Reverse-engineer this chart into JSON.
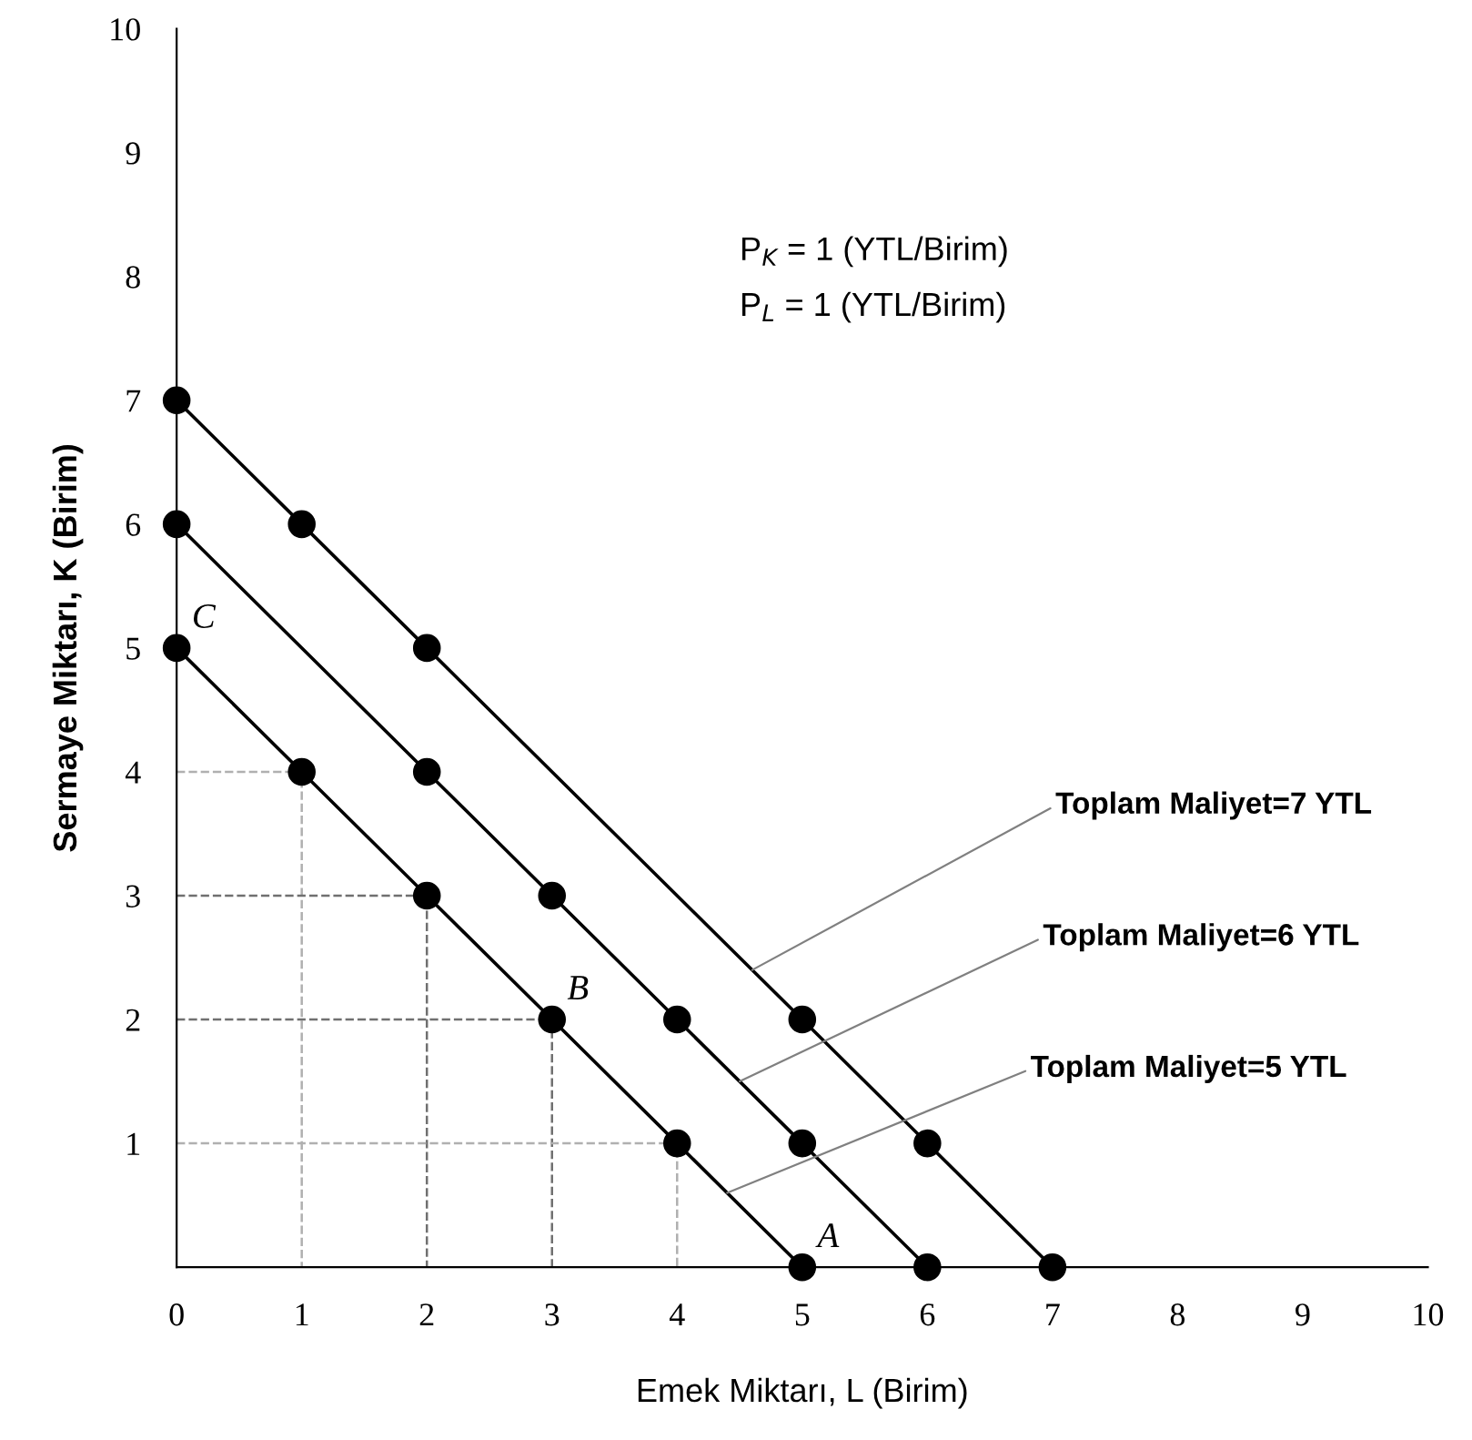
{
  "chart_data": {
    "type": "line",
    "xlabel": "Emek Miktarı, L (Birim)",
    "ylabel": "Sermaye Miktarı, K (Birim)",
    "xlim": [
      0,
      10
    ],
    "ylim": [
      0,
      10
    ],
    "xticks": [
      0,
      1,
      2,
      3,
      4,
      5,
      6,
      7,
      8,
      9,
      10
    ],
    "yticks": [
      1,
      2,
      3,
      4,
      5,
      6,
      7,
      8,
      9,
      10
    ],
    "grid": false,
    "marker": "circle",
    "line_style": "solid",
    "series": [
      {
        "color": "#000000",
        "x": [
          0,
          1,
          2,
          5,
          6,
          7
        ],
        "values": [
          7,
          6,
          5,
          2,
          1,
          0
        ]
      },
      {
        "color": "#000000",
        "x": [
          0,
          2,
          3,
          4,
          5,
          6
        ],
        "values": [
          6,
          4,
          3,
          2,
          1,
          0
        ]
      },
      {
        "color": "#000000",
        "x": [
          0,
          1,
          2,
          3,
          4,
          5
        ],
        "values": [
          5,
          4,
          3,
          2,
          1,
          0
        ]
      },
      {
        "color": "#b0b0b0",
        "x": [
          0,
          1,
          1
        ],
        "values": [
          4,
          4,
          0
        ],
        "line_style": "dashed",
        "marker": "none"
      },
      {
        "color": "#707070",
        "x": [
          0,
          2,
          2
        ],
        "values": [
          3,
          3,
          0
        ],
        "line_style": "dashed",
        "marker": "none"
      },
      {
        "color": "#707070",
        "x": [
          0,
          3,
          3
        ],
        "values": [
          2,
          2,
          0
        ],
        "line_style": "dashed",
        "marker": "none"
      },
      {
        "color": "#b0b0b0",
        "x": [
          0,
          4,
          4
        ],
        "values": [
          1,
          1,
          0
        ],
        "line_style": "dashed",
        "marker": "none"
      }
    ],
    "annotations": [
      {
        "text": "A",
        "x": 5,
        "y": 0
      },
      {
        "text": "B",
        "x": 3,
        "y": 2
      },
      {
        "text": "C",
        "x": 0,
        "y": 5
      },
      "P$_{K}$ = 1 (YTL/Birim)",
      "P$_{L}$ = 1 (YTL/Birim)",
      {
        "text": "Toplam Maliyet=7 YTL",
        "x": 4.6,
        "y": 2.4
      },
      {
        "text": "Toplam Maliyet=6 YTL",
        "x": 4.5,
        "y": 1.5
      },
      {
        "text": "Toplam Maliyet=5 YTL",
        "x": 4.4,
        "y": 0.6
      }
    ]
  }
}
